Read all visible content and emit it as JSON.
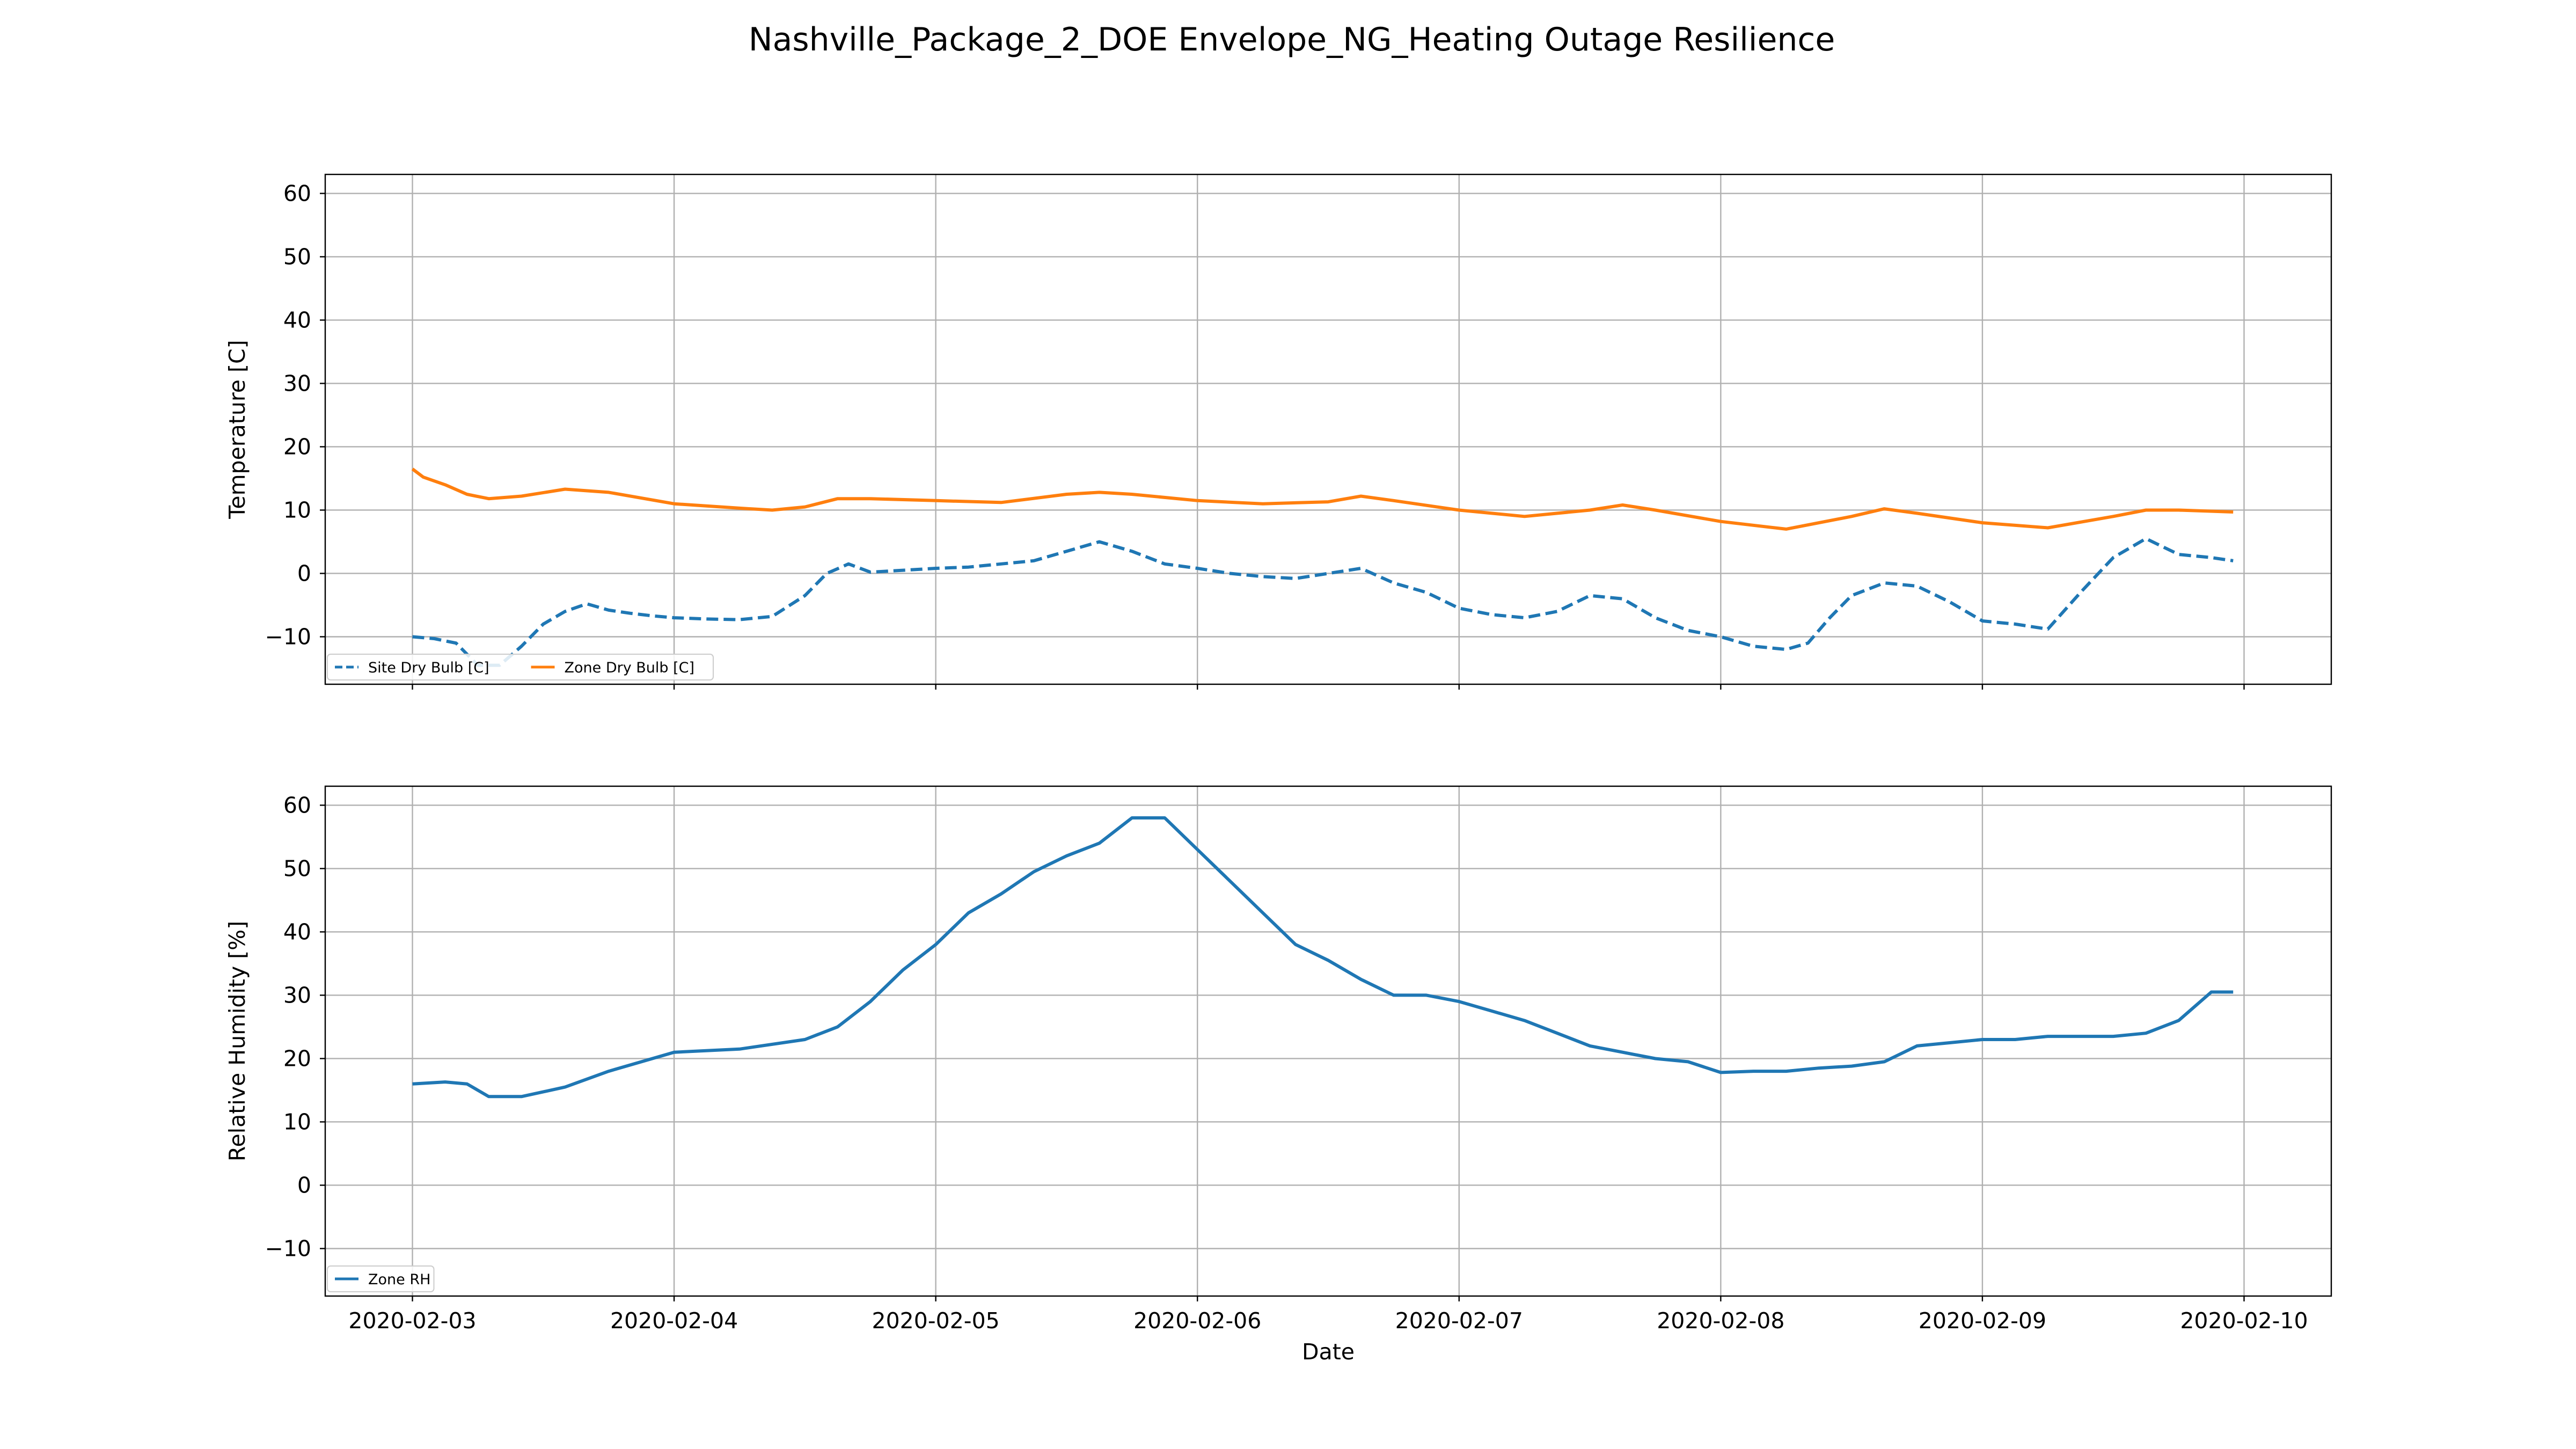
{
  "figure": {
    "title": "Nashville_Package_2_DOE Envelope_NG_Heating Outage Resilience"
  },
  "chart_data": [
    {
      "type": "line",
      "xlabel": "",
      "ylabel": "Temperature [C]",
      "x_range": [
        "2020-02-02T16:00",
        "2020-02-10T08:00"
      ],
      "ylim": [
        -17.5,
        63
      ],
      "yticks": [
        -10,
        0,
        10,
        20,
        30,
        40,
        50,
        60
      ],
      "xticks": [
        "2020-02-03",
        "2020-02-04",
        "2020-02-05",
        "2020-02-06",
        "2020-02-07",
        "2020-02-08",
        "2020-02-09",
        "2020-02-10"
      ],
      "show_xtick_labels": false,
      "grid": true,
      "legend": {
        "placement": "lower-left",
        "columns": 2
      },
      "series": [
        {
          "name": "Site Dry Bulb [C]",
          "color": "#1f77b4",
          "style": "dashed",
          "x": [
            "2020-02-03T00:00",
            "2020-02-03T02:00",
            "2020-02-03T04:00",
            "2020-02-03T06:00",
            "2020-02-03T08:00",
            "2020-02-03T10:00",
            "2020-02-03T12:00",
            "2020-02-03T14:00",
            "2020-02-03T16:00",
            "2020-02-03T18:00",
            "2020-02-03T20:00",
            "2020-02-03T22:00",
            "2020-02-04T00:00",
            "2020-02-04T03:00",
            "2020-02-04T06:00",
            "2020-02-04T09:00",
            "2020-02-04T12:00",
            "2020-02-04T14:00",
            "2020-02-04T16:00",
            "2020-02-04T18:00",
            "2020-02-04T21:00",
            "2020-02-05T00:00",
            "2020-02-05T03:00",
            "2020-02-05T06:00",
            "2020-02-05T09:00",
            "2020-02-05T12:00",
            "2020-02-05T15:00",
            "2020-02-05T18:00",
            "2020-02-05T21:00",
            "2020-02-06T00:00",
            "2020-02-06T03:00",
            "2020-02-06T06:00",
            "2020-02-06T09:00",
            "2020-02-06T12:00",
            "2020-02-06T15:00",
            "2020-02-06T18:00",
            "2020-02-06T21:00",
            "2020-02-07T00:00",
            "2020-02-07T03:00",
            "2020-02-07T06:00",
            "2020-02-07T09:00",
            "2020-02-07T12:00",
            "2020-02-07T15:00",
            "2020-02-07T18:00",
            "2020-02-07T21:00",
            "2020-02-08T00:00",
            "2020-02-08T03:00",
            "2020-02-08T06:00",
            "2020-02-08T08:00",
            "2020-02-08T10:00",
            "2020-02-08T12:00",
            "2020-02-08T15:00",
            "2020-02-08T18:00",
            "2020-02-08T21:00",
            "2020-02-09T00:00",
            "2020-02-09T03:00",
            "2020-02-09T06:00",
            "2020-02-09T09:00",
            "2020-02-09T12:00",
            "2020-02-09T15:00",
            "2020-02-09T18:00",
            "2020-02-09T21:00",
            "2020-02-09T23:00"
          ],
          "y": [
            -10,
            -10.3,
            -11,
            -14.5,
            -14.5,
            -11.5,
            -8,
            -6,
            -4.8,
            -5.8,
            -6.3,
            -6.7,
            -7,
            -7.2,
            -7.3,
            -6.8,
            -3.5,
            0,
            1.5,
            0.2,
            0.5,
            0.8,
            1,
            1.5,
            2,
            3.5,
            5,
            3.5,
            1.5,
            0.8,
            0,
            -0.5,
            -0.8,
            0,
            0.8,
            -1.5,
            -3,
            -5.5,
            -6.5,
            -7,
            -6,
            -3.5,
            -4,
            -7,
            -9,
            -10,
            -11.5,
            -12,
            -11,
            -7,
            -3.5,
            -1.5,
            -2,
            -4.5,
            -7.5,
            -8,
            -8.8,
            -3,
            2.5,
            5.5,
            3,
            2.5,
            2
          ]
        },
        {
          "name": "Zone Dry Bulb [C]",
          "color": "#ff7f0e",
          "style": "solid",
          "x": [
            "2020-02-03T00:00",
            "2020-02-03T01:00",
            "2020-02-03T03:00",
            "2020-02-03T05:00",
            "2020-02-03T07:00",
            "2020-02-03T10:00",
            "2020-02-03T14:00",
            "2020-02-03T18:00",
            "2020-02-04T00:00",
            "2020-02-04T06:00",
            "2020-02-04T09:00",
            "2020-02-04T12:00",
            "2020-02-04T15:00",
            "2020-02-04T18:00",
            "2020-02-05T00:00",
            "2020-02-05T06:00",
            "2020-02-05T12:00",
            "2020-02-05T15:00",
            "2020-02-05T18:00",
            "2020-02-06T00:00",
            "2020-02-06T06:00",
            "2020-02-06T12:00",
            "2020-02-06T15:00",
            "2020-02-06T18:00",
            "2020-02-07T00:00",
            "2020-02-07T06:00",
            "2020-02-07T12:00",
            "2020-02-07T15:00",
            "2020-02-07T18:00",
            "2020-02-08T00:00",
            "2020-02-08T06:00",
            "2020-02-08T12:00",
            "2020-02-08T15:00",
            "2020-02-08T18:00",
            "2020-02-09T00:00",
            "2020-02-09T06:00",
            "2020-02-09T12:00",
            "2020-02-09T15:00",
            "2020-02-09T18:00",
            "2020-02-09T23:00"
          ],
          "y": [
            16.5,
            15.2,
            14,
            12.5,
            11.8,
            12.2,
            13.3,
            12.8,
            11,
            10.3,
            10,
            10.5,
            11.8,
            11.8,
            11.5,
            11.2,
            12.5,
            12.8,
            12.5,
            11.5,
            11,
            11.3,
            12.2,
            11.5,
            10,
            9,
            10,
            10.8,
            10,
            8.2,
            7,
            9,
            10.2,
            9.5,
            8,
            7.2,
            9,
            10,
            10,
            9.7
          ]
        }
      ]
    },
    {
      "type": "line",
      "xlabel": "Date",
      "ylabel": "Relative Humidity [%]",
      "x_range": [
        "2020-02-02T16:00",
        "2020-02-10T08:00"
      ],
      "ylim": [
        -17.5,
        63
      ],
      "yticks": [
        -10,
        0,
        10,
        20,
        30,
        40,
        50,
        60
      ],
      "xticks": [
        "2020-02-03",
        "2020-02-04",
        "2020-02-05",
        "2020-02-06",
        "2020-02-07",
        "2020-02-08",
        "2020-02-09",
        "2020-02-10"
      ],
      "show_xtick_labels": true,
      "grid": true,
      "legend": {
        "placement": "lower-left",
        "columns": 1
      },
      "series": [
        {
          "name": "Zone RH",
          "color": "#1f77b4",
          "style": "solid",
          "x": [
            "2020-02-03T00:00",
            "2020-02-03T03:00",
            "2020-02-03T05:00",
            "2020-02-03T07:00",
            "2020-02-03T10:00",
            "2020-02-03T14:00",
            "2020-02-03T18:00",
            "2020-02-04T00:00",
            "2020-02-04T06:00",
            "2020-02-04T12:00",
            "2020-02-04T15:00",
            "2020-02-04T18:00",
            "2020-02-04T21:00",
            "2020-02-05T00:00",
            "2020-02-05T03:00",
            "2020-02-05T06:00",
            "2020-02-05T09:00",
            "2020-02-05T12:00",
            "2020-02-05T15:00",
            "2020-02-05T18:00",
            "2020-02-05T21:00",
            "2020-02-06T00:00",
            "2020-02-06T03:00",
            "2020-02-06T06:00",
            "2020-02-06T09:00",
            "2020-02-06T12:00",
            "2020-02-06T15:00",
            "2020-02-06T18:00",
            "2020-02-06T21:00",
            "2020-02-07T00:00",
            "2020-02-07T03:00",
            "2020-02-07T06:00",
            "2020-02-07T09:00",
            "2020-02-07T12:00",
            "2020-02-07T15:00",
            "2020-02-07T18:00",
            "2020-02-07T21:00",
            "2020-02-08T00:00",
            "2020-02-08T03:00",
            "2020-02-08T06:00",
            "2020-02-08T09:00",
            "2020-02-08T12:00",
            "2020-02-08T15:00",
            "2020-02-08T18:00",
            "2020-02-08T21:00",
            "2020-02-09T00:00",
            "2020-02-09T03:00",
            "2020-02-09T06:00",
            "2020-02-09T09:00",
            "2020-02-09T12:00",
            "2020-02-09T15:00",
            "2020-02-09T18:00",
            "2020-02-09T21:00",
            "2020-02-09T23:00"
          ],
          "y": [
            16,
            16.3,
            16,
            14,
            14,
            15.5,
            18,
            21,
            21.5,
            23,
            25,
            29,
            34,
            38,
            43,
            46,
            49.5,
            52,
            54,
            58,
            58,
            53,
            48,
            43,
            38,
            35.5,
            32.5,
            30,
            30,
            29,
            27.5,
            26,
            24,
            22,
            21,
            20,
            19.5,
            17.8,
            18,
            18,
            18.5,
            18.8,
            19.5,
            22,
            22.5,
            23,
            23,
            23.5,
            23.5,
            23.5,
            24,
            26,
            30.5,
            30.5
          ]
        }
      ]
    }
  ]
}
